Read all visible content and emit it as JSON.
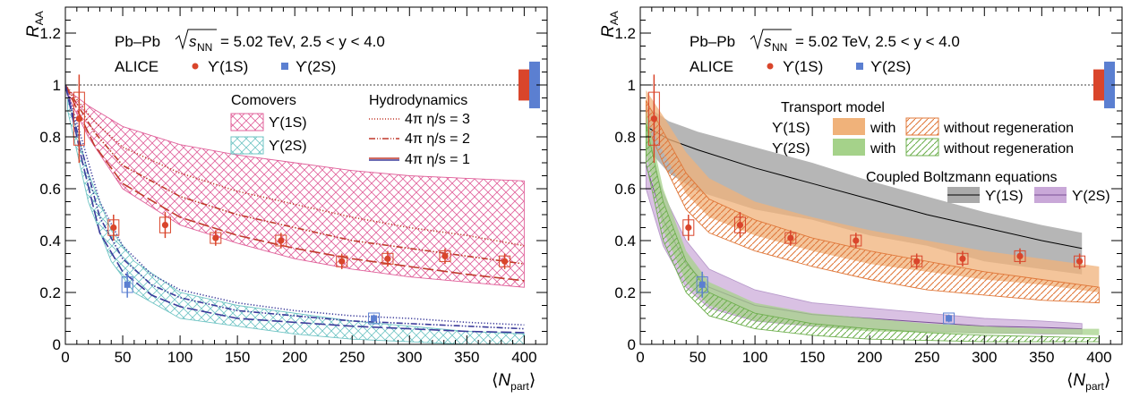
{
  "chart_data": [
    {
      "type": "scatter",
      "panel": "left",
      "xlabel": "⟨N_part⟩",
      "ylabel": "R_AA",
      "xlim": [
        0,
        420
      ],
      "ylim": [
        0,
        1.3
      ],
      "x_ticks": [
        0,
        50,
        100,
        150,
        200,
        250,
        300,
        350,
        400
      ],
      "y_ticks": [
        0,
        0.2,
        0.4,
        0.6,
        0.8,
        1,
        1.2
      ],
      "header": {
        "system": "Pb–Pb",
        "sqrt_label": "s",
        "sqrt_sub": "NN",
        "energy": "= 5.02 TeV, 2.5 < y < 4.0",
        "experiment": "ALICE",
        "marker_1s": "ϒ(1S)",
        "marker_2s": "ϒ(2S)"
      },
      "legend_comovers": {
        "title": "Comovers",
        "items": [
          {
            "label": "ϒ(1S)",
            "color": "#e0609a"
          },
          {
            "label": "ϒ(2S)",
            "color": "#70c4c4"
          }
        ]
      },
      "legend_hydro": {
        "title": "Hydrodynamics",
        "items": [
          {
            "label": "4π  η/s = 3",
            "color": "#c0392b",
            "style": "dotted"
          },
          {
            "label": "4π  η/s = 2",
            "color": "#c0392b",
            "style": "dashdot"
          },
          {
            "label": "4π  η/s = 1",
            "color": "#3b3b9a",
            "style": "solid"
          }
        ]
      },
      "series": [
        {
          "name": "ϒ(1S)",
          "color": "#d9452b",
          "x": [
            12,
            42,
            87,
            131,
            188,
            241,
            281,
            331,
            383
          ],
          "y": [
            0.87,
            0.45,
            0.46,
            0.41,
            0.4,
            0.32,
            0.33,
            0.34,
            0.32
          ],
          "err": [
            0.17,
            0.05,
            0.05,
            0.03,
            0.03,
            0.03,
            0.03,
            0.03,
            0.03
          ]
        },
        {
          "name": "ϒ(2S)",
          "color": "#5b7fd1",
          "x": [
            54,
            269
          ],
          "y": [
            0.23,
            0.1
          ],
          "err": [
            0.05,
            0.015
          ]
        }
      ],
      "bands": [
        {
          "label": "Comovers ϒ(1S)",
          "color": "#e0609a",
          "x": [
            2,
            20,
            50,
            100,
            150,
            200,
            250,
            300,
            350,
            400
          ],
          "upper": [
            0.98,
            0.92,
            0.84,
            0.77,
            0.73,
            0.7,
            0.67,
            0.65,
            0.64,
            0.63
          ],
          "lower": [
            0.96,
            0.8,
            0.6,
            0.46,
            0.39,
            0.33,
            0.29,
            0.26,
            0.24,
            0.22
          ]
        },
        {
          "label": "Comovers ϒ(2S)",
          "color": "#70c4c4",
          "x": [
            2,
            20,
            40,
            60,
            100,
            150,
            200,
            250,
            300,
            350,
            400
          ],
          "upper": [
            0.95,
            0.66,
            0.44,
            0.32,
            0.2,
            0.15,
            0.12,
            0.09,
            0.07,
            0.05,
            0.04
          ],
          "lower": [
            0.9,
            0.55,
            0.32,
            0.2,
            0.1,
            0.07,
            0.04,
            0.02,
            0.01,
            0.0,
            0.0
          ]
        }
      ],
      "lines": [
        {
          "label": "η/s = 3 (1S)",
          "color": "#c0392b",
          "style": "dotted",
          "x": [
            0,
            25,
            50,
            100,
            150,
            200,
            250,
            300,
            350,
            400
          ],
          "y": [
            1.0,
            0.86,
            0.76,
            0.66,
            0.59,
            0.54,
            0.49,
            0.45,
            0.42,
            0.38
          ]
        },
        {
          "label": "η/s = 2 (1S)",
          "color": "#c0392b",
          "style": "dashdot",
          "x": [
            0,
            25,
            50,
            100,
            150,
            200,
            250,
            300,
            350,
            400
          ],
          "y": [
            1.0,
            0.82,
            0.69,
            0.57,
            0.5,
            0.45,
            0.4,
            0.37,
            0.34,
            0.31
          ]
        },
        {
          "label": "η/s = 1 (1S)",
          "color": "#c0392b",
          "style": "dashed",
          "x": [
            0,
            25,
            50,
            100,
            150,
            200,
            250,
            300,
            350,
            400
          ],
          "y": [
            1.0,
            0.77,
            0.62,
            0.49,
            0.42,
            0.37,
            0.33,
            0.3,
            0.27,
            0.245
          ]
        },
        {
          "label": "η/s = 3 (2S)",
          "color": "#3b3b9a",
          "style": "dotted",
          "x": [
            0,
            15,
            30,
            50,
            75,
            100,
            150,
            200,
            250,
            300,
            350,
            400
          ],
          "y": [
            1.0,
            0.78,
            0.55,
            0.38,
            0.27,
            0.21,
            0.16,
            0.13,
            0.11,
            0.1,
            0.085,
            0.075
          ]
        },
        {
          "label": "η/s = 2 (2S)",
          "color": "#3b3b9a",
          "style": "dashdot",
          "x": [
            0,
            15,
            30,
            50,
            75,
            100,
            150,
            200,
            250,
            300,
            350,
            400
          ],
          "y": [
            1.0,
            0.74,
            0.49,
            0.33,
            0.23,
            0.18,
            0.13,
            0.11,
            0.09,
            0.08,
            0.07,
            0.06
          ]
        },
        {
          "label": "η/s = 1 (2S)",
          "color": "#3b3b9a",
          "style": "dashed",
          "x": [
            0,
            15,
            30,
            50,
            75,
            100,
            150,
            200,
            250,
            300,
            350,
            400
          ],
          "y": [
            1.0,
            0.7,
            0.43,
            0.28,
            0.19,
            0.145,
            0.1,
            0.085,
            0.07,
            0.06,
            0.05,
            0.045
          ]
        }
      ]
    },
    {
      "type": "scatter",
      "panel": "right",
      "xlabel": "⟨N_part⟩",
      "ylabel": "R_AA",
      "xlim": [
        0,
        420
      ],
      "ylim": [
        0,
        1.3
      ],
      "x_ticks": [
        0,
        50,
        100,
        150,
        200,
        250,
        300,
        350,
        400
      ],
      "y_ticks": [
        0,
        0.2,
        0.4,
        0.6,
        0.8,
        1,
        1.2
      ],
      "header": {
        "system": "Pb–Pb",
        "sqrt_label": "s",
        "sqrt_sub": "NN",
        "energy": "= 5.02 TeV, 2.5 < y < 4.0",
        "experiment": "ALICE",
        "marker_1s": "ϒ(1S)",
        "marker_2s": "ϒ(2S)"
      },
      "legend_transport": {
        "title": "Transport model",
        "row_1s": "ϒ(1S)",
        "row_2s": "ϒ(2S)",
        "with": "with",
        "without": "without regeneration",
        "color_1s": "#f0b27a",
        "hatch_1s": "#e0783a",
        "color_2s": "#a5d28a",
        "hatch_2s": "#6fb04f"
      },
      "legend_boltzmann": {
        "title": "Coupled Boltzmann equations",
        "items": [
          {
            "label": "ϒ(1S)",
            "color": "#aaaaaa"
          },
          {
            "label": "ϒ(2S)",
            "color": "#c9a8d8"
          }
        ]
      },
      "series": [
        {
          "name": "ϒ(1S)",
          "color": "#d9452b",
          "x": [
            12,
            42,
            87,
            131,
            188,
            241,
            281,
            331,
            383
          ],
          "y": [
            0.87,
            0.45,
            0.46,
            0.41,
            0.4,
            0.32,
            0.33,
            0.34,
            0.32
          ],
          "err": [
            0.17,
            0.05,
            0.05,
            0.03,
            0.03,
            0.03,
            0.03,
            0.03,
            0.03
          ]
        },
        {
          "name": "ϒ(2S)",
          "color": "#5b7fd1",
          "x": [
            54,
            269
          ],
          "y": [
            0.23,
            0.1
          ],
          "err": [
            0.05,
            0.015
          ]
        }
      ],
      "bands": [
        {
          "label": "Boltzmann ϒ(1S)",
          "color": "#9e9e9e",
          "fill": "solid",
          "x": [
            5,
            25,
            50,
            100,
            150,
            200,
            250,
            300,
            350,
            385
          ],
          "upper": [
            0.92,
            0.86,
            0.82,
            0.76,
            0.7,
            0.63,
            0.57,
            0.51,
            0.46,
            0.43
          ],
          "lower": [
            0.76,
            0.66,
            0.59,
            0.52,
            0.48,
            0.42,
            0.38,
            0.32,
            0.29,
            0.27
          ],
          "center": [
            0.84,
            0.79,
            0.75,
            0.68,
            0.62,
            0.56,
            0.5,
            0.45,
            0.4,
            0.37
          ]
        },
        {
          "label": "Transport ϒ(1S) with",
          "color": "#f0b27a",
          "fill": "solid",
          "x": [
            5,
            20,
            40,
            60,
            100,
            150,
            200,
            250,
            300,
            350,
            400
          ],
          "upper": [
            0.98,
            0.88,
            0.74,
            0.64,
            0.55,
            0.49,
            0.44,
            0.4,
            0.36,
            0.33,
            0.3
          ],
          "lower": [
            0.88,
            0.74,
            0.58,
            0.49,
            0.42,
            0.36,
            0.31,
            0.28,
            0.25,
            0.23,
            0.2
          ]
        },
        {
          "label": "Transport ϒ(1S) without",
          "color": "#e0783a",
          "fill": "hatch",
          "x": [
            5,
            20,
            40,
            60,
            100,
            150,
            200,
            250,
            300,
            350,
            400
          ],
          "upper": [
            0.94,
            0.82,
            0.66,
            0.56,
            0.48,
            0.41,
            0.36,
            0.32,
            0.28,
            0.25,
            0.22
          ],
          "lower": [
            0.85,
            0.7,
            0.52,
            0.43,
            0.36,
            0.3,
            0.25,
            0.21,
            0.19,
            0.17,
            0.16
          ]
        },
        {
          "label": "Boltzmann ϒ(2S)",
          "color": "#c9a8d8",
          "fill": "solid",
          "x": [
            5,
            20,
            40,
            60,
            100,
            150,
            200,
            250,
            300,
            350,
            385
          ],
          "upper": [
            0.78,
            0.58,
            0.4,
            0.29,
            0.21,
            0.16,
            0.14,
            0.12,
            0.1,
            0.09,
            0.08
          ],
          "lower": [
            0.6,
            0.38,
            0.22,
            0.14,
            0.09,
            0.07,
            0.06,
            0.05,
            0.045,
            0.04,
            0.04
          ],
          "center": [
            0.69,
            0.48,
            0.31,
            0.22,
            0.15,
            0.115,
            0.1,
            0.085,
            0.07,
            0.065,
            0.06
          ]
        },
        {
          "label": "Transport ϒ(2S) with",
          "color": "#a5d28a",
          "fill": "solid",
          "x": [
            5,
            20,
            40,
            60,
            100,
            150,
            200,
            250,
            300,
            350,
            400
          ],
          "upper": [
            0.9,
            0.6,
            0.36,
            0.24,
            0.16,
            0.12,
            0.1,
            0.08,
            0.07,
            0.06,
            0.06
          ],
          "lower": [
            0.74,
            0.44,
            0.24,
            0.15,
            0.09,
            0.07,
            0.05,
            0.045,
            0.04,
            0.04,
            0.035
          ]
        },
        {
          "label": "Transport ϒ(2S) without",
          "color": "#6fb04f",
          "fill": "hatch",
          "x": [
            5,
            20,
            40,
            60,
            100,
            150,
            200,
            250,
            300,
            350,
            400
          ],
          "upper": [
            0.85,
            0.55,
            0.32,
            0.2,
            0.12,
            0.08,
            0.06,
            0.045,
            0.035,
            0.03,
            0.025
          ],
          "lower": [
            0.7,
            0.4,
            0.2,
            0.11,
            0.06,
            0.035,
            0.02,
            0.015,
            0.01,
            0.01,
            0.01
          ]
        }
      ],
      "lines": []
    }
  ]
}
